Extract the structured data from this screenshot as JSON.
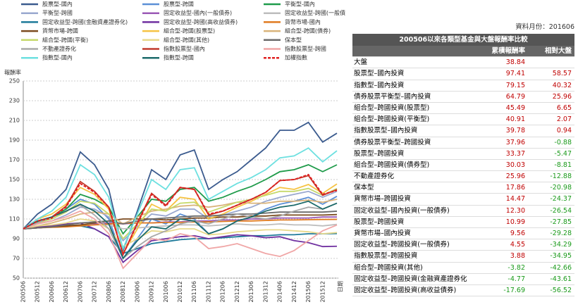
{
  "chart_data": {
    "type": "line",
    "y_label": "報酬率",
    "x_label": "日期",
    "categories": [
      "200506",
      "200512",
      "200606",
      "200612",
      "200706",
      "200712",
      "200806",
      "200812",
      "200906",
      "200912",
      "201006",
      "201012",
      "201106",
      "201112",
      "201206",
      "201212",
      "201306",
      "201312",
      "201406",
      "201412",
      "201506",
      "201512",
      null
    ],
    "ylim": [
      50,
      250
    ],
    "yticks": [
      50,
      70,
      90,
      110,
      130,
      150,
      170,
      190,
      210,
      230,
      250
    ],
    "grid": true,
    "series": [
      {
        "name": "股票型-國內",
        "color": "#3b5b8e",
        "values": [
          100,
          115,
          125,
          140,
          178,
          165,
          140,
          78,
          118,
          160,
          150,
          175,
          180,
          140,
          150,
          158,
          170,
          182,
          200,
          200,
          208,
          188,
          197
        ]
      },
      {
        "name": "股票型-跨國",
        "color": "#5b8fd6",
        "values": [
          100,
          108,
          112,
          120,
          130,
          125,
          110,
          70,
          90,
          110,
          105,
          115,
          110,
          95,
          100,
          108,
          112,
          120,
          125,
          128,
          132,
          125,
          133
        ]
      },
      {
        "name": "平衡型-國內",
        "color": "#1f9b4a",
        "values": [
          100,
          107,
          112,
          120,
          135,
          130,
          122,
          95,
          112,
          130,
          128,
          140,
          142,
          128,
          132,
          138,
          143,
          150,
          158,
          160,
          165,
          158,
          165
        ]
      },
      {
        "name": "平衡型-跨國",
        "color": "#9aa8cf",
        "values": [
          100,
          105,
          108,
          114,
          122,
          120,
          112,
          88,
          102,
          115,
          113,
          120,
          120,
          110,
          114,
          118,
          122,
          128,
          132,
          135,
          138,
          132,
          138
        ]
      },
      {
        "name": "固定收益型-國內(一般債券)",
        "color": "#9b59b6",
        "values": [
          100,
          101,
          102,
          103,
          104,
          105,
          106,
          105,
          106,
          106,
          107,
          107,
          108,
          108,
          109,
          109,
          110,
          110,
          111,
          111,
          111,
          112,
          112
        ]
      },
      {
        "name": "固定收益型-跨國(一般債券)",
        "color": "#bdbdbd",
        "values": [
          100,
          101,
          102,
          103,
          104,
          104,
          104,
          100,
          101,
          102,
          103,
          104,
          104,
          103,
          104,
          105,
          104,
          104,
          105,
          104,
          104,
          103,
          104.5
        ]
      },
      {
        "name": "固定收益型-跨國(金融資產證券化)",
        "color": "#1e7a9a",
        "values": [
          100,
          101,
          102,
          103,
          103,
          100,
          92,
          75,
          80,
          85,
          87,
          89,
          90,
          90,
          91,
          92,
          93,
          93,
          94,
          94,
          95,
          95,
          95.2
        ]
      },
      {
        "name": "固定收益型-跨國(高收益債券)",
        "color": "#7030a0",
        "values": [
          100,
          102,
          103,
          105,
          106,
          100,
          92,
          66,
          78,
          88,
          90,
          92,
          93,
          90,
          92,
          94,
          93,
          91,
          92,
          88,
          86,
          82,
          82.3
        ]
      },
      {
        "name": "貨幣市場-國內",
        "color": "#e07b20",
        "values": [
          100,
          101,
          101.5,
          102,
          103,
          104,
          105,
          105.5,
          106,
          106,
          106.5,
          106.5,
          107,
          107,
          107.5,
          108,
          108,
          108.5,
          109,
          109,
          109.3,
          109.5,
          109.6
        ]
      },
      {
        "name": "貨幣市場-跨國",
        "color": "#7b4a1e",
        "values": [
          100,
          101,
          102,
          103,
          104,
          106,
          108,
          110,
          110,
          110,
          109,
          110,
          111,
          111,
          112,
          112,
          113,
          113,
          114,
          114,
          114,
          114,
          114.5
        ]
      },
      {
        "name": "組合型-跨國(股票型)",
        "color": "#f6c343",
        "values": [
          100,
          110,
          115,
          125,
          142,
          135,
          120,
          75,
          100,
          125,
          118,
          132,
          130,
          110,
          115,
          122,
          128,
          135,
          142,
          140,
          145,
          136,
          145.5
        ]
      },
      {
        "name": "組合型-跨國(債券)",
        "color": "#d9b37a",
        "values": [
          100,
          103,
          106,
          110,
          115,
          117,
          115,
          105,
          112,
          118,
          120,
          123,
          124,
          122,
          124,
          127,
          126,
          126,
          128,
          128,
          129,
          127,
          130
        ]
      },
      {
        "name": "組合型-跨國(平衡)",
        "color": "#c6d96b",
        "values": [
          100,
          106,
          110,
          117,
          128,
          126,
          115,
          90,
          105,
          120,
          118,
          126,
          127,
          117,
          122,
          127,
          130,
          134,
          138,
          138,
          141,
          134,
          140.9
        ]
      },
      {
        "name": "組合型-跨國(其他)",
        "color": "#e8d98b",
        "values": [
          100,
          103,
          104,
          106,
          110,
          108,
          100,
          82,
          90,
          98,
          97,
          100,
          100,
          94,
          95,
          97,
          98,
          99,
          99,
          98,
          97,
          95,
          96.2
        ]
      },
      {
        "name": "保本型",
        "color": "#6b6b6b",
        "values": [
          100,
          101,
          102,
          104,
          106,
          107,
          108,
          105,
          108,
          110,
          111,
          112,
          113,
          113,
          114,
          115,
          115,
          116,
          117,
          117,
          117,
          117,
          117.9
        ]
      },
      {
        "name": "不動產證券化",
        "color": "#a8a8a8",
        "values": [
          100,
          106,
          112,
          118,
          124,
          114,
          100,
          70,
          82,
          92,
          98,
          105,
          108,
          105,
          110,
          115,
          112,
          110,
          113,
          118,
          122,
          120,
          126
        ]
      },
      {
        "name": "指數股票型-國內",
        "color": "#c0392b",
        "values": [
          100,
          108,
          112,
          123,
          148,
          138,
          122,
          74,
          106,
          136,
          124,
          142,
          140,
          114,
          118,
          124,
          130,
          137,
          149,
          150,
          154,
          134,
          139.8
        ]
      },
      {
        "name": "指數股票型-跨國",
        "color": "#f0a6a6",
        "values": [
          100,
          105,
          108,
          112,
          118,
          110,
          95,
          60,
          75,
          90,
          88,
          95,
          92,
          80,
          82,
          85,
          80,
          75,
          72,
          78,
          88,
          98,
          103.9
        ]
      },
      {
        "name": "指數型-國內",
        "color": "#6de0e0",
        "values": [
          100,
          110,
          118,
          132,
          165,
          155,
          132,
          80,
          115,
          150,
          140,
          160,
          162,
          130,
          138,
          146,
          152,
          160,
          172,
          174,
          182,
          168,
          179.2
        ]
      },
      {
        "name": "指數型-跨國",
        "color": "#1d6b6b",
        "values": [
          100,
          108,
          112,
          118,
          125,
          118,
          105,
          70,
          88,
          102,
          100,
          110,
          108,
          95,
          100,
          108,
          112,
          118,
          122,
          124,
          128,
          120,
          126
        ]
      },
      {
        "name": "加權指數",
        "color": "#e02020",
        "dashed": true,
        "values": [
          100,
          108,
          111,
          122,
          146,
          137,
          122,
          74,
          105,
          135,
          123,
          142,
          140,
          115,
          118,
          124,
          130,
          137,
          149,
          150,
          155,
          135,
          139
        ]
      }
    ]
  },
  "table": {
    "note": "資料月份：201606",
    "title": "200506以來各類型基金與大盤報酬率比較",
    "header": [
      "累積報酬率",
      "相對大盤"
    ],
    "rows": [
      [
        "大盤",
        "38.84"
      ],
      [
        "股票型–國內投資",
        "97.41",
        "58.57"
      ],
      [
        "指數型–國內投資",
        "79.15",
        "40.32"
      ],
      [
        "債券股票平衡型–國內投資",
        "64.79",
        "25.96"
      ],
      [
        "組合型–跨國投資(股票型)",
        "45.49",
        "6.65"
      ],
      [
        "組合型–跨國投資(平衡型)",
        "40.91",
        "2.07"
      ],
      [
        "指數股票型–國內投資",
        "39.78",
        "0.94"
      ],
      [
        "債券股票平衡型–跨國投資",
        "37.96",
        "-0.88"
      ],
      [
        "股票型–跨國投資",
        "33.37",
        "-5.47"
      ],
      [
        "組合型–跨國投資(債券型)",
        "30.03",
        "-8.81"
      ],
      [
        "不動產證券化",
        "25.96",
        "-12.88"
      ],
      [
        "保本型",
        "17.86",
        "-20.98"
      ],
      [
        "貨幣市場–跨國投資",
        "14.47",
        "-24.37"
      ],
      [
        "固定收益型–國內投資(一般債券)",
        "12.30",
        "-26.54"
      ],
      [
        "股票型–跨國投資",
        "10.99",
        "-27.85"
      ],
      [
        "貨幣市場–國內投資",
        "9.56",
        "-29.28"
      ],
      [
        "固定收益型–跨國投資(一般債券)",
        "4.55",
        "-34.29"
      ],
      [
        "指數股票型–跨國投資",
        "3.88",
        "-34.95"
      ],
      [
        "組合型–跨國投資(其他)",
        "-3.82",
        "-42.66"
      ],
      [
        "固定收益型–跨國投資(金融資產證券化",
        "-4.77",
        "-43.61"
      ],
      [
        "固定收益型–跨國投資(高收益債券)",
        "-17.69",
        "-56.52"
      ]
    ]
  }
}
